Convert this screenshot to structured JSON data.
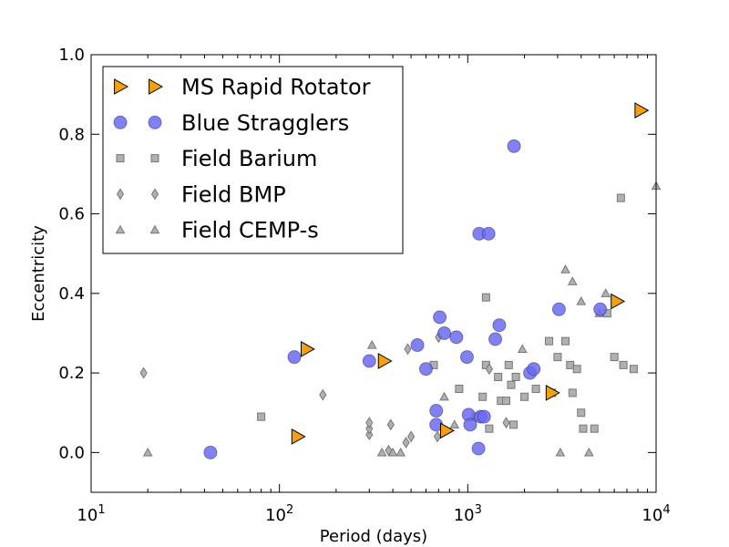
{
  "chart_data": {
    "type": "scatter",
    "title": "",
    "xlabel": "Period (days)",
    "ylabel": "Eccentricity",
    "xscale": "log",
    "xlim": [
      10,
      10000
    ],
    "ylim": [
      -0.1,
      1.0
    ],
    "x_ticks": [
      {
        "value": 10,
        "base": "10",
        "exp": "1"
      },
      {
        "value": 100,
        "base": "10",
        "exp": "2"
      },
      {
        "value": 1000,
        "base": "10",
        "exp": "3"
      },
      {
        "value": 10000,
        "base": "10",
        "exp": "4"
      }
    ],
    "y_ticks": [
      {
        "value": 0.0,
        "label": "0.0"
      },
      {
        "value": 0.2,
        "label": "0.2"
      },
      {
        "value": 0.4,
        "label": "0.4"
      },
      {
        "value": 0.6,
        "label": "0.6"
      },
      {
        "value": 0.8,
        "label": "0.8"
      },
      {
        "value": 1.0,
        "label": "1.0"
      }
    ],
    "legend_position": "top-left",
    "series": [
      {
        "name": "Field Barium",
        "marker": "square",
        "color": "#b0b0b0",
        "points": [
          [
            80,
            0.09
          ],
          [
            660,
            0.22
          ],
          [
            900,
            0.16
          ],
          [
            1100,
            0.09
          ],
          [
            1200,
            0.14
          ],
          [
            1250,
            0.39
          ],
          [
            1300,
            0.06
          ],
          [
            1250,
            0.22
          ],
          [
            1450,
            0.19
          ],
          [
            1500,
            0.13
          ],
          [
            1600,
            0.13
          ],
          [
            1650,
            0.22
          ],
          [
            1700,
            0.17
          ],
          [
            1750,
            0.07
          ],
          [
            1800,
            0.19
          ],
          [
            2000,
            0.14
          ],
          [
            2300,
            0.16
          ],
          [
            2700,
            0.28
          ],
          [
            2800,
            0.15
          ],
          [
            3000,
            0.24
          ],
          [
            3300,
            0.28
          ],
          [
            3500,
            0.22
          ],
          [
            3600,
            0.15
          ],
          [
            3800,
            0.21
          ],
          [
            4000,
            0.1
          ],
          [
            4100,
            0.06
          ],
          [
            4700,
            0.06
          ],
          [
            5500,
            0.35
          ],
          [
            6000,
            0.24
          ],
          [
            6500,
            0.64
          ],
          [
            6700,
            0.22
          ],
          [
            7600,
            0.21
          ]
        ]
      },
      {
        "name": "Field BMP",
        "marker": "diamond",
        "color": "#b0b0b0",
        "points": [
          [
            19,
            0.2
          ],
          [
            170,
            0.145
          ],
          [
            300,
            0.045
          ],
          [
            300,
            0.06
          ],
          [
            300,
            0.075
          ],
          [
            380,
            0.005
          ],
          [
            390,
            0.07
          ],
          [
            470,
            0.025
          ],
          [
            480,
            0.26
          ],
          [
            500,
            0.04
          ],
          [
            690,
            0.04
          ],
          [
            700,
            0.29
          ],
          [
            1300,
            0.21
          ],
          [
            1600,
            0.075
          ]
        ]
      },
      {
        "name": "Field CEMP-s",
        "marker": "triangle",
        "color": "#b0b0b0",
        "points": [
          [
            20,
            0.0
          ],
          [
            310,
            0.27
          ],
          [
            350,
            0.0
          ],
          [
            400,
            0.0
          ],
          [
            440,
            0.0
          ],
          [
            750,
            0.14
          ],
          [
            850,
            0.07
          ],
          [
            1950,
            0.26
          ],
          [
            3100,
            0.0
          ],
          [
            3300,
            0.46
          ],
          [
            3600,
            0.43
          ],
          [
            4000,
            0.38
          ],
          [
            4400,
            0.0
          ],
          [
            5000,
            0.35
          ],
          [
            5400,
            0.4
          ],
          [
            10000,
            0.67
          ]
        ]
      },
      {
        "name": "Blue Stragglers",
        "marker": "circle",
        "color": "#6b6bf0",
        "points": [
          [
            43,
            0.0
          ],
          [
            120,
            0.24
          ],
          [
            300,
            0.23
          ],
          [
            540,
            0.27
          ],
          [
            600,
            0.21
          ],
          [
            680,
            0.105
          ],
          [
            680,
            0.07
          ],
          [
            710,
            0.34
          ],
          [
            750,
            0.3
          ],
          [
            870,
            0.29
          ],
          [
            990,
            0.24
          ],
          [
            1010,
            0.095
          ],
          [
            1030,
            0.07
          ],
          [
            1140,
            0.01
          ],
          [
            1150,
            0.55
          ],
          [
            1170,
            0.09
          ],
          [
            1220,
            0.09
          ],
          [
            1290,
            0.55
          ],
          [
            1400,
            0.285
          ],
          [
            1470,
            0.32
          ],
          [
            1760,
            0.77
          ],
          [
            2140,
            0.2
          ],
          [
            2240,
            0.21
          ],
          [
            3050,
            0.36
          ],
          [
            5050,
            0.36
          ]
        ]
      },
      {
        "name": "MS Rapid Rotator",
        "marker": "triangle-right",
        "color": "#f5a010",
        "points": [
          [
            125,
            0.04
          ],
          [
            140,
            0.26
          ],
          [
            360,
            0.23
          ],
          [
            770,
            0.055
          ],
          [
            2800,
            0.15
          ],
          [
            6200,
            0.38
          ],
          [
            8300,
            0.86
          ]
        ]
      }
    ],
    "legend": [
      {
        "label": "MS Rapid Rotator",
        "marker": "triangle-right",
        "color": "#f5a010"
      },
      {
        "label": "Blue Stragglers",
        "marker": "circle",
        "color": "#6b6bf0"
      },
      {
        "label": "Field Barium",
        "marker": "square",
        "color": "#b0b0b0"
      },
      {
        "label": "Field BMP",
        "marker": "diamond",
        "color": "#b0b0b0"
      },
      {
        "label": "Field CEMP-s",
        "marker": "triangle",
        "color": "#b0b0b0"
      }
    ]
  }
}
